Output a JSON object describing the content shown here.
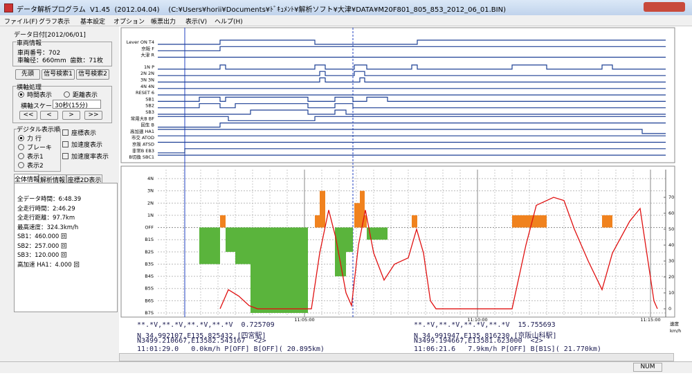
{
  "window": {
    "title": "データ解析プログラム  V1.45  (2012.04.04)    (C:¥Users¥horii¥Documents¥ﾄﾞｷｭﾒﾝﾄ¥解析ソフト¥大津¥DATA¥M20F801_805_853_2012_06_01.BIN)",
    "menu": [
      "ファイル(F)",
      "グラフ表示",
      "基本設定",
      "オプション",
      "帳票出力",
      "表示(V)",
      "ヘルプ(H)"
    ],
    "status": "NUM"
  },
  "left_panel": {
    "date": "データ日付[2012/06/01]",
    "vehicle": {
      "title": "車両情報",
      "number": "車両番号：702",
      "wheel": "車輪径：660mm  歯数：71枚"
    },
    "buttons": [
      "先頭",
      "信号検索1",
      "信号検索2"
    ],
    "axis_group": {
      "title": "横軸処理",
      "radios": [
        "時間表示",
        "距離表示"
      ],
      "scale_label": "横軸スケール",
      "scale_value": "30秒(15分)",
      "nav": [
        "<<",
        "<",
        ">",
        ">>"
      ]
    },
    "digital_group": {
      "title": "デジタル表示順",
      "radios": [
        "力 行",
        "ブレーキ",
        "表示1",
        "表示2"
      ]
    },
    "checkboxes": [
      "座標表示",
      "加速度表示",
      "加速度率表示"
    ],
    "tabs": [
      "全体情報",
      "解析情報",
      "座標2D表示"
    ],
    "info": [
      "全データ時間：6:48.39",
      "全走行時間：2:46.29",
      "全走行距離：97.7km",
      "最高速度：324.3km/h",
      "SB1：460.000 回",
      "SB2：257.000 回",
      "SB3：120.000 回",
      "高加速 HA1：4.000 回"
    ]
  },
  "signals": {
    "color": "#1c3f94",
    "rows": [
      {
        "label": "Lever ON T4",
        "x": [
          0.76,
          2.56,
          5.3,
          8.26
        ],
        "values": [
          0,
          1,
          0,
          1
        ]
      },
      {
        "label": "京阪 F",
        "x": [
          0.76,
          2.56
        ],
        "values": [
          0,
          1
        ]
      },
      {
        "label": "大津 R",
        "x": [
          0.76
        ],
        "values": [
          0
        ]
      },
      {
        "label": "1N P",
        "x": [
          0.76,
          2.56,
          2.72,
          5.3,
          5.6,
          6.44,
          6.8,
          8.1,
          8.26,
          11.0,
          12.0,
          13.6,
          13.9
        ],
        "values": [
          0,
          1,
          0,
          1,
          0,
          1,
          0,
          1,
          0,
          1,
          0,
          1,
          0
        ]
      },
      {
        "label": "2N 2N",
        "x": [
          0.76,
          5.44,
          5.6,
          6.44,
          6.74
        ],
        "values": [
          0,
          1,
          0,
          1,
          0
        ]
      },
      {
        "label": "3N 3N",
        "x": [
          0.76,
          5.44,
          5.6,
          6.6,
          6.74
        ],
        "values": [
          0,
          1,
          0,
          1,
          0
        ]
      },
      {
        "label": "4N 4N",
        "x": [
          0.76
        ],
        "values": [
          0
        ]
      },
      {
        "label": "RESET 6",
        "x": [
          0.76
        ],
        "values": [
          0
        ]
      },
      {
        "label": "SB1",
        "x": [
          0.76,
          1.96,
          2.56,
          2.72,
          5.1,
          5.88,
          6.4,
          6.8,
          7.4
        ],
        "values": [
          0,
          1,
          0,
          1,
          0,
          1,
          0,
          1,
          0
        ]
      },
      {
        "label": "SB2",
        "x": [
          0.76,
          1.96,
          2.56,
          3.0,
          5.1,
          5.88,
          6.4
        ],
        "values": [
          0,
          1,
          0,
          1,
          0,
          1,
          0
        ]
      },
      {
        "label": "SB3",
        "x": [
          0.76,
          3.44,
          5.1,
          5.88,
          6.2
        ],
        "values": [
          0,
          1,
          0,
          1,
          0
        ]
      },
      {
        "label": "常用大B BF",
        "x": [
          0.76,
          2.8,
          5.3
        ],
        "values": [
          1,
          0,
          1
        ]
      },
      {
        "label": "回生 B",
        "x": [
          0.76,
          2.56
        ],
        "values": [
          0,
          1
        ]
      },
      {
        "label": "高加速 HA1",
        "x": [
          0.76,
          14.76
        ],
        "values": [
          1,
          0
        ]
      },
      {
        "label": "市交 ATOD",
        "x": [
          0.76
        ],
        "values": [
          1
        ]
      },
      {
        "label": "京阪 ATSD",
        "x": [
          0.76
        ],
        "values": [
          1
        ]
      },
      {
        "label": "非常B EB3",
        "x": [
          0.76,
          1.54
        ],
        "values": [
          0,
          1
        ]
      },
      {
        "label": "B切換 SBC1",
        "x": [
          0.76
        ],
        "values": [
          1
        ]
      }
    ]
  },
  "chart_data": {
    "type": "combo",
    "xlim": [
      0.76,
      15.44
    ],
    "xticks": [
      {
        "value": 5,
        "label": "11:05:00"
      },
      {
        "value": 10,
        "label": "11:10:00"
      },
      {
        "value": 15,
        "label": "11:15:00"
      }
    ],
    "ylim": [
      -7.34,
      4.74
    ],
    "yticks": [
      {
        "value": 4,
        "label": "4N"
      },
      {
        "value": 3,
        "label": "3N"
      },
      {
        "value": 2,
        "label": "2N"
      },
      {
        "value": 1,
        "label": "1N"
      },
      {
        "value": 0,
        "label": "OFF"
      },
      {
        "value": -1,
        "label": "B1S"
      },
      {
        "value": -2,
        "label": "B2S"
      },
      {
        "value": -3,
        "label": "B3S"
      },
      {
        "value": -4,
        "label": "B4S"
      },
      {
        "value": -5,
        "label": "B5S"
      },
      {
        "value": -6,
        "label": "B6S"
      },
      {
        "value": -7,
        "label": "B7S"
      }
    ],
    "y2lim": [
      -5.2,
      87.4
    ],
    "y2ticks": [
      0,
      10,
      20,
      30,
      40,
      50,
      60,
      70
    ],
    "y2_label": [
      "速度",
      "km/h"
    ],
    "grid": true,
    "notch": {
      "power_color": "#f0821e",
      "brake_color": "#5ab43c",
      "bins": [
        1.96,
        2.56,
        2.72,
        3.0,
        3.44,
        5.1,
        5.3,
        5.44,
        5.6,
        5.88,
        6.2,
        6.4,
        6.44,
        6.6,
        6.74,
        6.8,
        7.4,
        8.1,
        8.26,
        11.0,
        12.0,
        13.6,
        13.9
      ],
      "values": [
        -3,
        1,
        -2,
        -3,
        -7,
        0,
        1,
        3,
        0,
        -4,
        -2,
        0,
        2,
        3,
        1,
        -1,
        0,
        1,
        0,
        1,
        0,
        1
      ]
    },
    "series": [
      {
        "name": "speed",
        "color": "#e01010",
        "axis": "y2",
        "x": [
          2.56,
          2.8,
          3.1,
          3.4,
          3.64,
          5.2,
          5.44,
          5.7,
          5.9,
          6.2,
          6.36,
          6.56,
          6.76,
          7.0,
          7.3,
          7.6,
          8.0,
          8.24,
          8.44,
          8.64,
          8.8,
          11.0,
          11.4,
          11.7,
          12.2,
          12.5,
          12.8,
          13.2,
          13.6,
          13.9,
          14.4,
          14.7,
          15.1,
          15.2
        ],
        "values": [
          0,
          12,
          8,
          2,
          0,
          0,
          35,
          62,
          45,
          10,
          2,
          40,
          62,
          35,
          18,
          28,
          32,
          50,
          35,
          5,
          0,
          0,
          40,
          65,
          70,
          68,
          50,
          30,
          12,
          35,
          55,
          63,
          5,
          0
        ]
      }
    ]
  },
  "cursors": {
    "left": [
      "**.*V,**.*V,**.*V,**.*V  0.725709",
      "N 34.992107,E135.825432,[四宮駅]",
      "N3499.210667,E13582.543167  <2>",
      "11:01:29.0   0.0km/h P[OFF] B[OFF]( 20.895km)"
    ],
    "right": [
      "**.*V,**.*V,**.*V,**.*V  15.755693",
      "N 34.991947,E135.816230,[京阪山科駅]",
      "N3499.194667,E13581.623000  <2>",
      "11:06:21.6   7.9km/h P[OFF] B[B1S]( 21.770km)"
    ]
  }
}
